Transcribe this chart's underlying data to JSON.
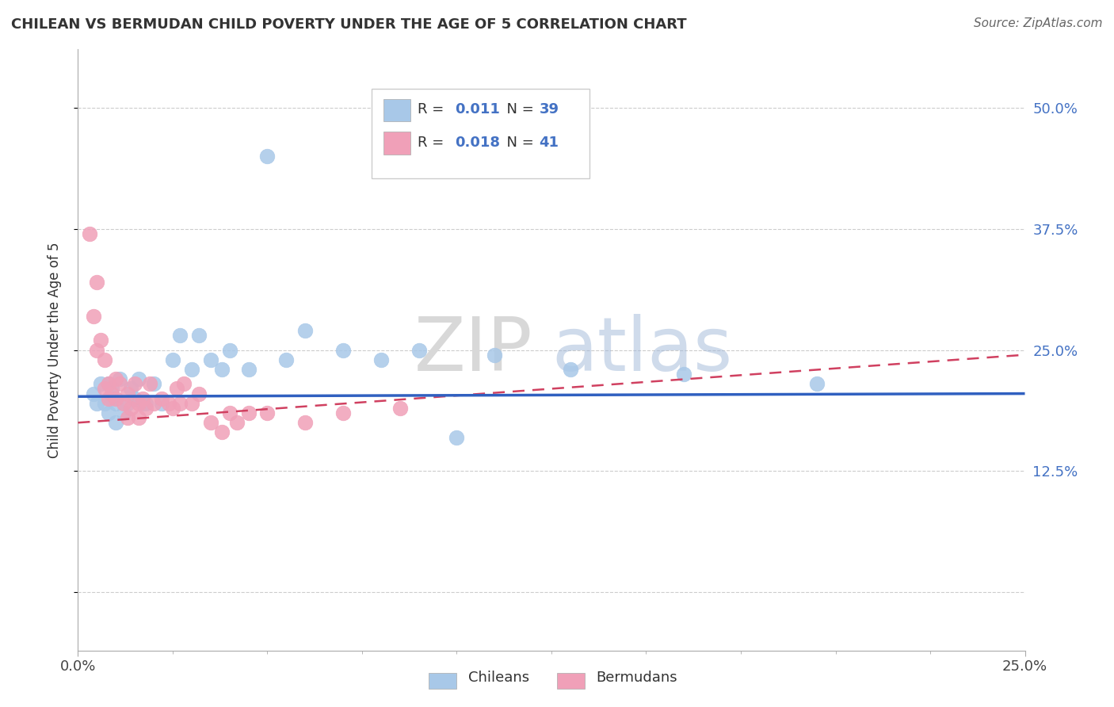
{
  "title": "CHILEAN VS BERMUDAN CHILD POVERTY UNDER THE AGE OF 5 CORRELATION CHART",
  "source": "Source: ZipAtlas.com",
  "ylabel": "Child Poverty Under the Age of 5",
  "chilean_color": "#a8c8e8",
  "bermudan_color": "#f0a0b8",
  "chilean_line_color": "#3060c0",
  "bermudan_line_color": "#d04060",
  "watermark_zip": "ZIP",
  "watermark_atlas": "atlas",
  "xlim_min": 0.0,
  "xlim_max": 0.25,
  "ylim_min": -0.06,
  "ylim_max": 0.56,
  "ytick_vals": [
    0.0,
    0.125,
    0.25,
    0.375,
    0.5
  ],
  "ytick_labels": [
    "",
    "12.5%",
    "25.0%",
    "37.5%",
    "50.0%"
  ],
  "xtick_vals": [
    0.0,
    0.25
  ],
  "xtick_labels": [
    "0.0%",
    "25.0%"
  ],
  "legend_r1": "0.011",
  "legend_n1": "39",
  "legend_r2": "0.018",
  "legend_n2": "41",
  "chilean_x": [
    0.004,
    0.005,
    0.006,
    0.007,
    0.008,
    0.008,
    0.009,
    0.009,
    0.01,
    0.01,
    0.011,
    0.012,
    0.013,
    0.014,
    0.015,
    0.016,
    0.017,
    0.018,
    0.02,
    0.022,
    0.025,
    0.027,
    0.03,
    0.032,
    0.035,
    0.038,
    0.04,
    0.045,
    0.05,
    0.055,
    0.06,
    0.07,
    0.08,
    0.09,
    0.1,
    0.11,
    0.13,
    0.16,
    0.195
  ],
  "chilean_y": [
    0.205,
    0.195,
    0.215,
    0.195,
    0.215,
    0.185,
    0.2,
    0.21,
    0.195,
    0.175,
    0.22,
    0.185,
    0.195,
    0.21,
    0.2,
    0.22,
    0.195,
    0.195,
    0.215,
    0.195,
    0.24,
    0.265,
    0.23,
    0.265,
    0.24,
    0.23,
    0.25,
    0.23,
    0.45,
    0.24,
    0.27,
    0.25,
    0.24,
    0.25,
    0.16,
    0.245,
    0.23,
    0.225,
    0.215
  ],
  "bermudan_x": [
    0.003,
    0.004,
    0.005,
    0.005,
    0.006,
    0.007,
    0.007,
    0.008,
    0.008,
    0.009,
    0.01,
    0.01,
    0.011,
    0.012,
    0.013,
    0.013,
    0.014,
    0.015,
    0.016,
    0.016,
    0.017,
    0.018,
    0.019,
    0.02,
    0.022,
    0.024,
    0.025,
    0.026,
    0.027,
    0.028,
    0.03,
    0.032,
    0.035,
    0.038,
    0.04,
    0.042,
    0.045,
    0.05,
    0.06,
    0.07,
    0.085
  ],
  "bermudan_y": [
    0.37,
    0.285,
    0.25,
    0.32,
    0.26,
    0.21,
    0.24,
    0.2,
    0.215,
    0.205,
    0.2,
    0.22,
    0.215,
    0.195,
    0.205,
    0.18,
    0.19,
    0.215,
    0.18,
    0.195,
    0.2,
    0.19,
    0.215,
    0.195,
    0.2,
    0.195,
    0.19,
    0.21,
    0.195,
    0.215,
    0.195,
    0.205,
    0.175,
    0.165,
    0.185,
    0.175,
    0.185,
    0.185,
    0.175,
    0.185,
    0.19
  ],
  "chilean_line_y0": 0.202,
  "chilean_line_y1": 0.205,
  "bermudan_line_y0": 0.175,
  "bermudan_line_y1": 0.245
}
